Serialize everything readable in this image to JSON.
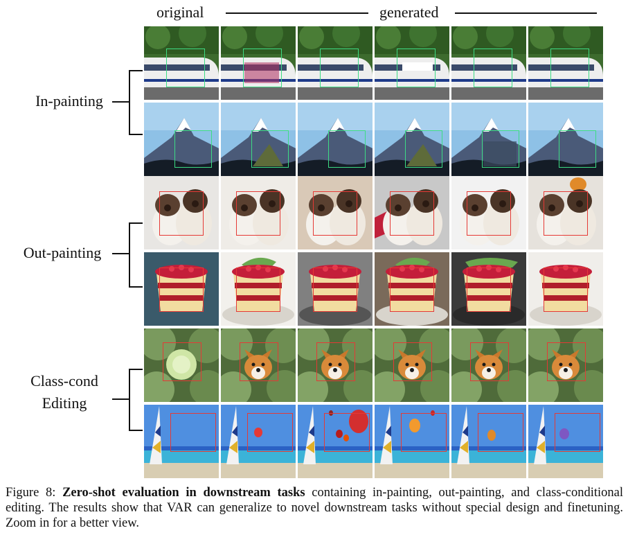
{
  "header": {
    "original_label": "original",
    "generated_label": "generated"
  },
  "row_groups": [
    {
      "label": "In-painting",
      "task": "inpaint"
    },
    {
      "label": "Out-painting",
      "task": "outpaint"
    },
    {
      "label_lines": [
        "Class-cond",
        "Editing"
      ],
      "task": "edit"
    }
  ],
  "rows": [
    {
      "subject": "train",
      "box_color": "green"
    },
    {
      "subject": "mountain",
      "box_color": "green"
    },
    {
      "subject": "dogs",
      "box_color": "red"
    },
    {
      "subject": "cake",
      "box_color": "red"
    },
    {
      "subject": "cabbage-corgi",
      "box_color": "red"
    },
    {
      "subject": "beach-balloon",
      "box_color": "red"
    }
  ],
  "colors": {
    "inpaint_box": "#3ddc84",
    "outpaint_box": "#e53935",
    "edit_box": "#e53935"
  },
  "caption": {
    "prefix": "Figure 8:",
    "bold": "Zero-shot evaluation in downstream tasks",
    "rest": "containing in-painting, out-painting, and class-conditional editing. The results show that VAR can generalize to novel downstream tasks without special design and finetuning. Zoom in for a better view."
  }
}
